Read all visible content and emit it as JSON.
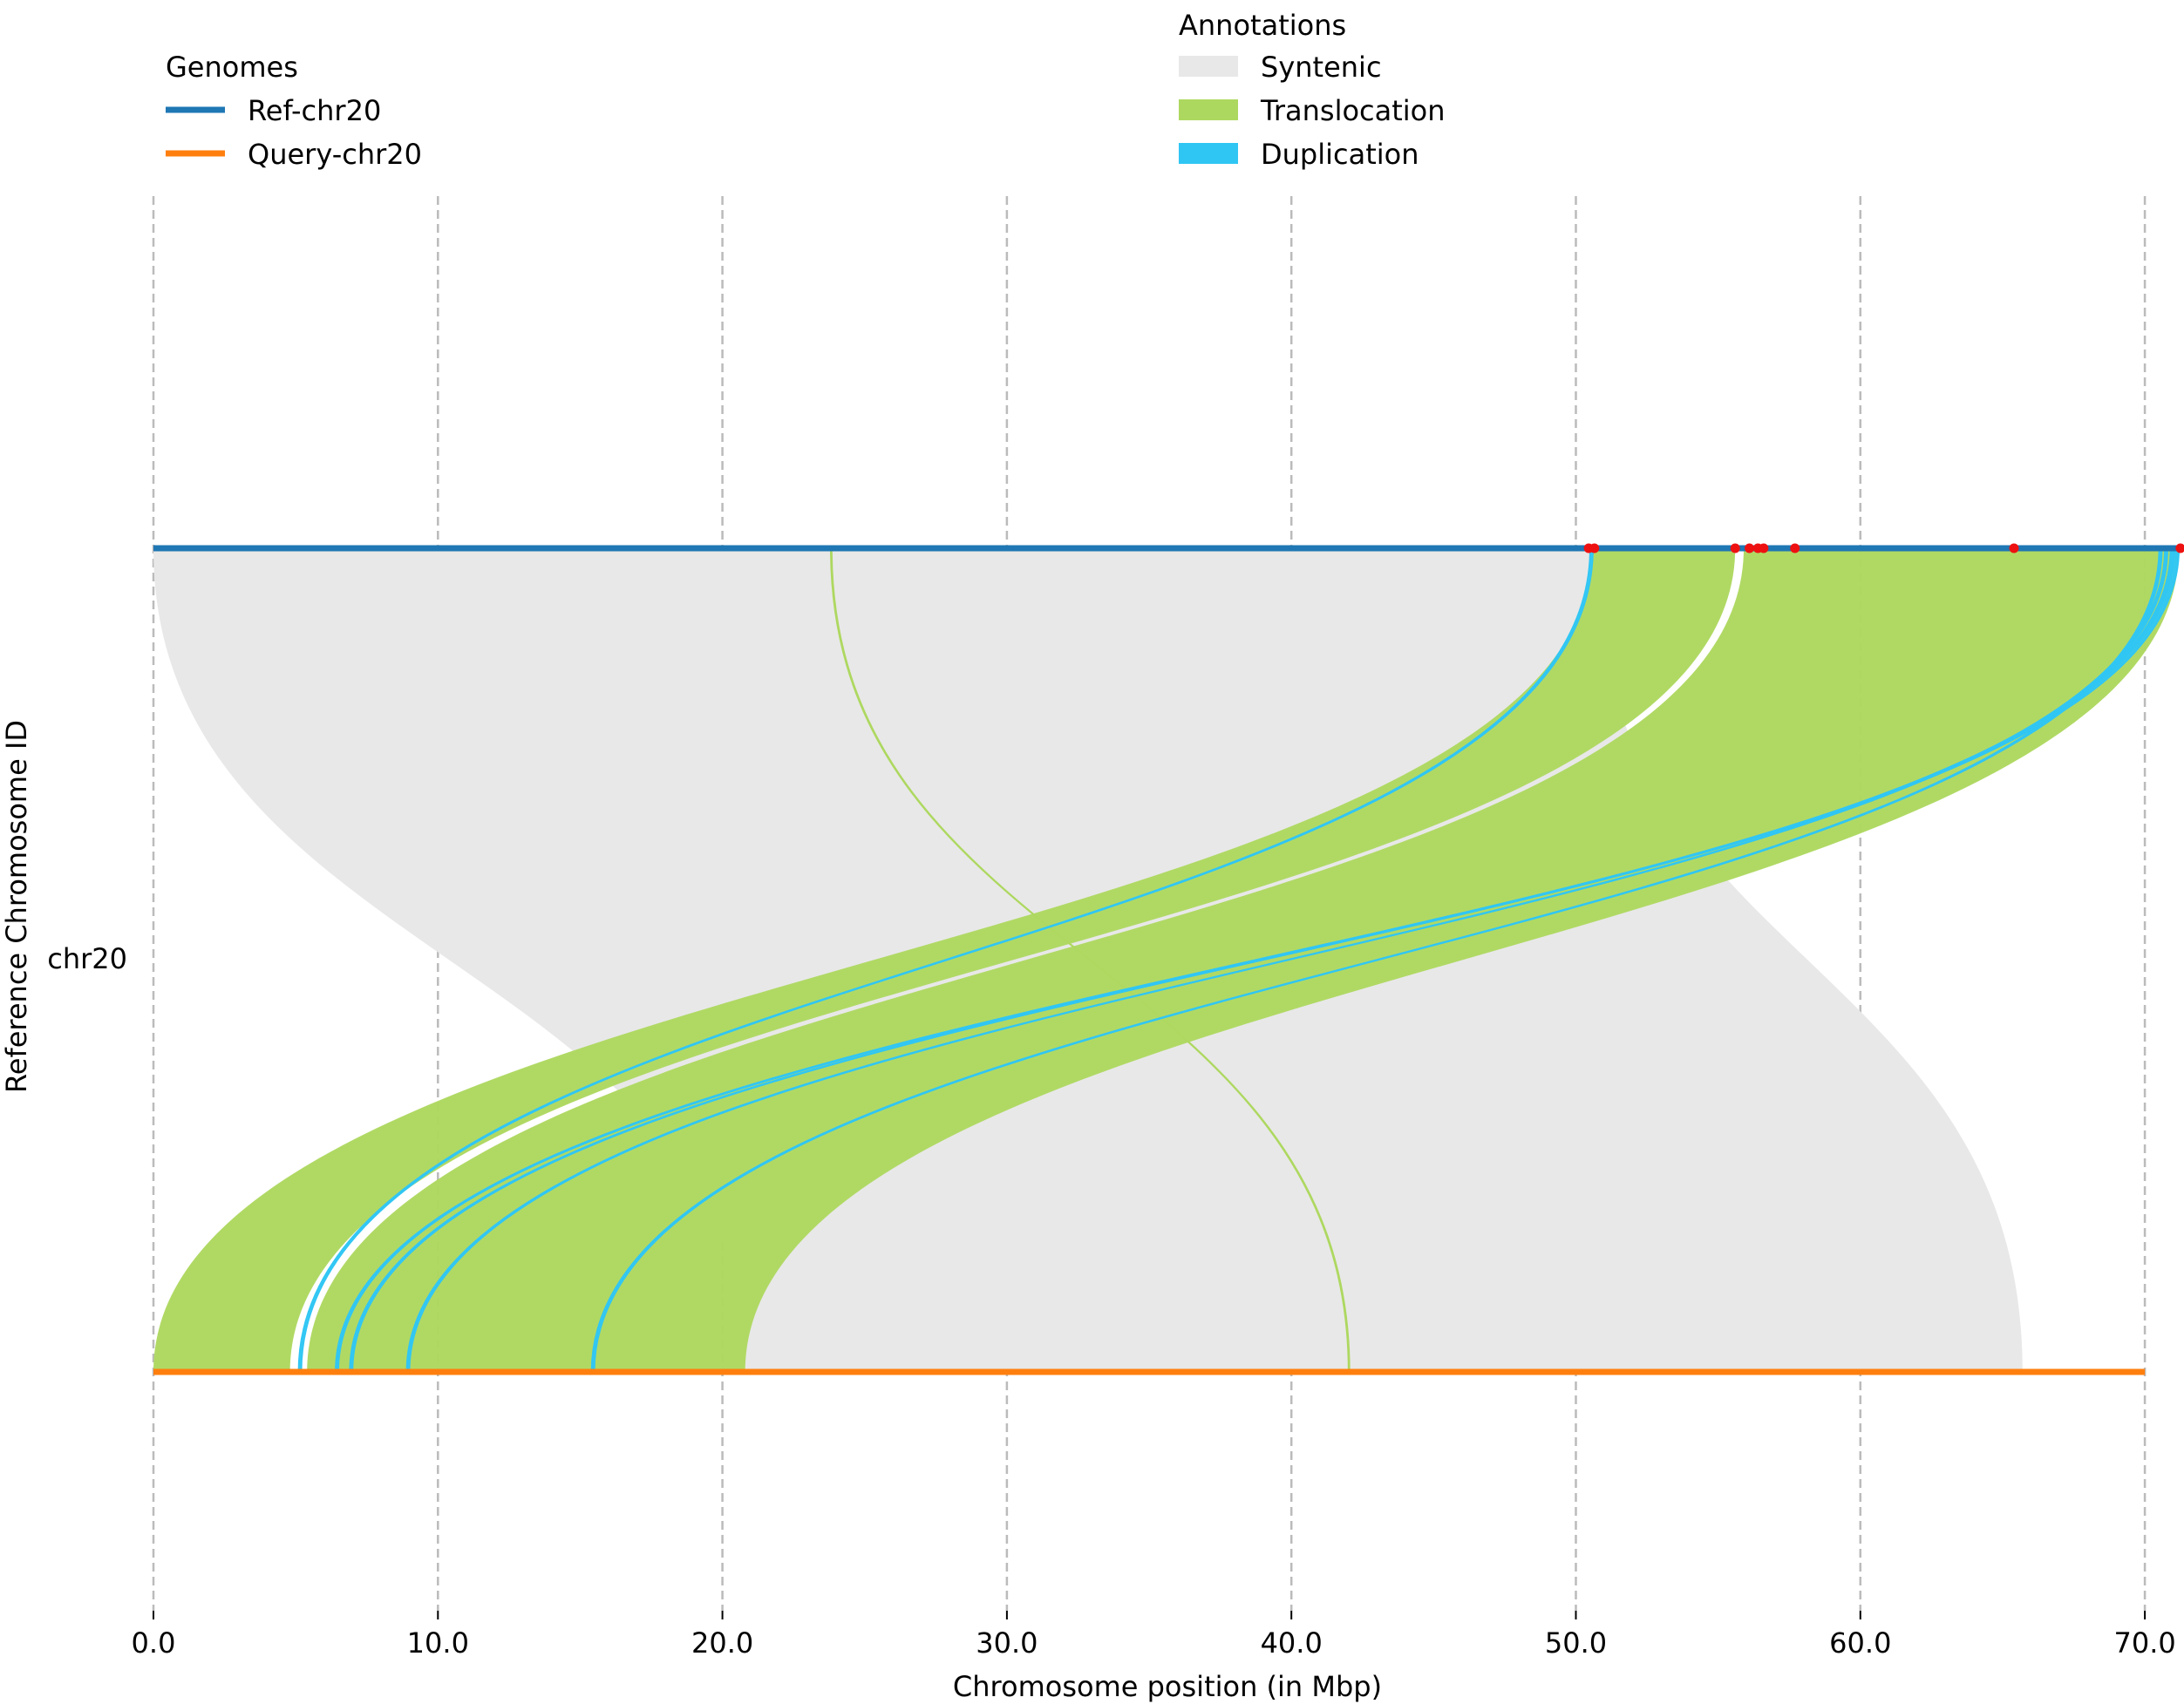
{
  "chart_data": {
    "type": "synteny",
    "xlabel": "Chromosome position (in Mbp)",
    "ylabel": "Reference Chromosome ID",
    "ytick_labels": [
      "chr20"
    ],
    "xlim": [
      0,
      71.3
    ],
    "xticks": [
      0,
      10,
      20,
      30,
      40,
      50,
      60,
      70
    ],
    "xtick_labels": [
      "0.0",
      "10.0",
      "20.0",
      "30.0",
      "40.0",
      "50.0",
      "60.0",
      "70.0"
    ],
    "grid": "vertical dashed",
    "genomes_legend": {
      "title": "Genomes",
      "placement": "top-left",
      "entries": [
        {
          "name": "Ref-chr20",
          "color": "#1f77b4"
        },
        {
          "name": "Query-chr20",
          "color": "#ff7f0e"
        }
      ]
    },
    "annotations_legend": {
      "title": "Annotations",
      "placement": "top-center",
      "entries": [
        {
          "name": "Syntenic",
          "color": "#e8e8e8"
        },
        {
          "name": "Translocation",
          "color": "#add85f"
        },
        {
          "name": "Duplication",
          "color": "#30c6f4"
        }
      ]
    },
    "genomes": [
      {
        "name": "Ref-chr20",
        "length": 71.2,
        "color": "#1f77b4"
      },
      {
        "name": "Query-chr20",
        "length": 70.0,
        "color": "#ff7f0e"
      }
    ],
    "alignments": [
      {
        "type": "Syntenic",
        "ref": [
          0.0,
          50.6
        ],
        "query": [
          20.8,
          65.7
        ]
      },
      {
        "type": "Translocation",
        "ref": [
          23.8,
          23.85
        ],
        "query": [
          42.0,
          42.05
        ]
      },
      {
        "type": "Translocation",
        "ref": [
          50.6,
          55.6
        ],
        "query": [
          0.0,
          4.8
        ]
      },
      {
        "type": "Translocation",
        "ref": [
          55.9,
          71.2
        ],
        "query": [
          5.4,
          20.8
        ]
      },
      {
        "type": "Duplication",
        "ref": [
          50.5,
          50.6
        ],
        "query": [
          5.1,
          5.2
        ]
      },
      {
        "type": "Duplication",
        "ref": [
          71.0,
          71.2
        ],
        "query": [
          6.4,
          6.5
        ]
      },
      {
        "type": "Duplication",
        "ref": [
          70.9,
          71.0
        ],
        "query": [
          6.9,
          7.0
        ]
      },
      {
        "type": "Duplication",
        "ref": [
          70.7,
          70.8
        ],
        "query": [
          8.9,
          9.0
        ]
      },
      {
        "type": "Duplication",
        "ref": [
          70.5,
          70.6
        ],
        "query": [
          15.4,
          15.5
        ]
      }
    ],
    "ref_markers": [
      50.45,
      50.65,
      55.6,
      56.1,
      56.4,
      56.6,
      57.7,
      65.4,
      71.25
    ]
  }
}
